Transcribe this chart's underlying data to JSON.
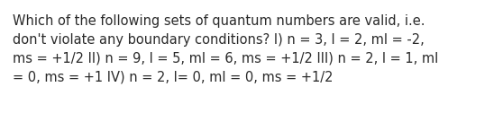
{
  "line1": "Which of the following sets of quantum numbers are valid, i.e.",
  "line2": "don't violate any boundary conditions? I) n = 3, l = 2, ml = -2,",
  "line3": "ms = +1/2 II) n = 9, l = 5, ml = 6, ms = +1/2 III) n = 2, l = 1, ml",
  "line4": "= 0, ms = +1 IV) n = 2, l= 0, ml = 0, ms = +1/2",
  "background_color": "#ffffff",
  "text_color": "#2a2a2a",
  "font_size": 10.5,
  "fig_width": 5.58,
  "fig_height": 1.26,
  "dpi": 100
}
